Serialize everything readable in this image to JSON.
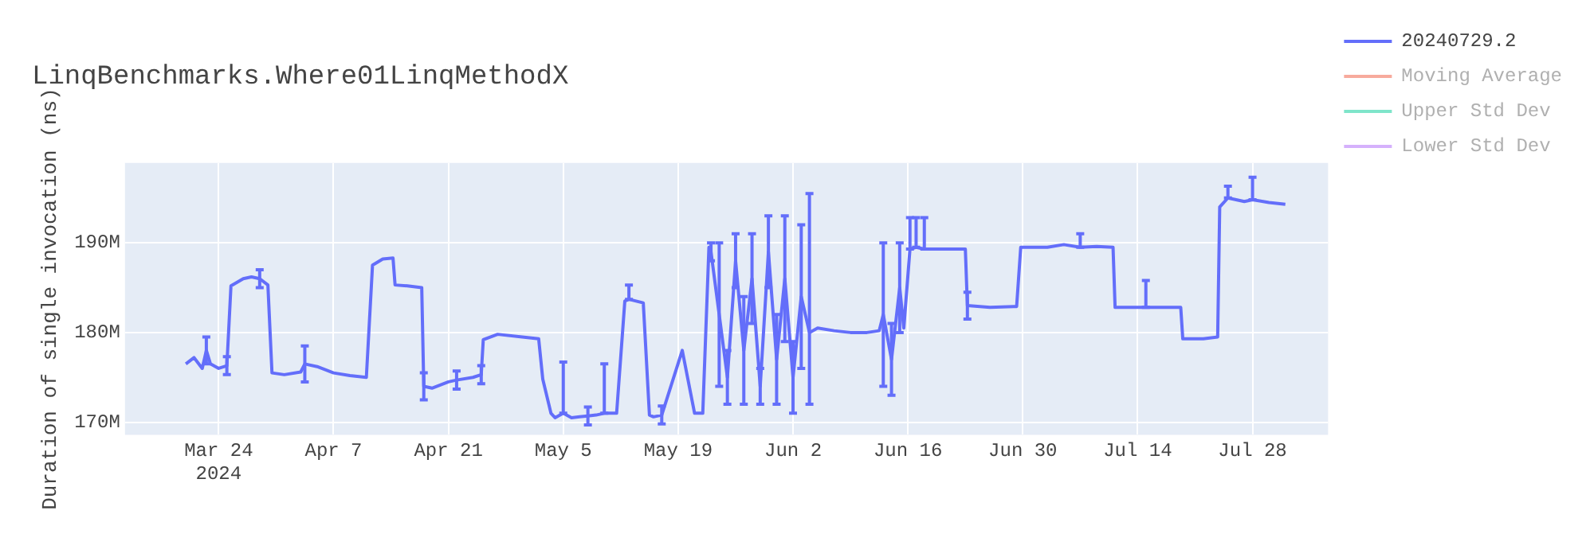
{
  "chart_data": {
    "type": "line",
    "title": "LinqBenchmarks.Where01LinqMethodX",
    "ylabel": "Duration of single invocation (ns)",
    "xlim": [
      "2024-03-12T14:00",
      "2024-08-06T05:00"
    ],
    "xticks": [
      {
        "value": "2024-03-24",
        "label": "Mar 24\n2024"
      },
      {
        "value": "2024-04-07",
        "label": "Apr 7"
      },
      {
        "value": "2024-04-21",
        "label": "Apr 21"
      },
      {
        "value": "2024-05-05",
        "label": "May 5"
      },
      {
        "value": "2024-05-19",
        "label": "May 19"
      },
      {
        "value": "2024-06-02",
        "label": "Jun 2"
      },
      {
        "value": "2024-06-16",
        "label": "Jun 16"
      },
      {
        "value": "2024-06-30",
        "label": "Jun 30"
      },
      {
        "value": "2024-07-14",
        "label": "Jul 14"
      },
      {
        "value": "2024-07-28",
        "label": "Jul 28"
      }
    ],
    "ylim": [
      168600000,
      198900000
    ],
    "yticks": [
      {
        "value": 170000000,
        "label": "170M"
      },
      {
        "value": 180000000,
        "label": "180M"
      },
      {
        "value": 190000000,
        "label": "190M"
      }
    ],
    "grid": true,
    "legend": "top right",
    "marker": "none",
    "line_style": "solid",
    "series": [
      {
        "name": "20240729.2",
        "color": "#636efa",
        "x": [
          "2024-03-20",
          "2024-03-21",
          "2024-03-22",
          "2024-03-22T12:00",
          "2024-03-23",
          "2024-03-24",
          "2024-03-25",
          "2024-03-25T12:00",
          "2024-03-27",
          "2024-03-28",
          "2024-03-29",
          "2024-03-30",
          "2024-03-30T12:00",
          "2024-04-01",
          "2024-04-03",
          "2024-04-03T12:00",
          "2024-04-05",
          "2024-04-07",
          "2024-04-09",
          "2024-04-11",
          "2024-04-11T18:00",
          "2024-04-13",
          "2024-04-14T06:00",
          "2024-04-14T12:00",
          "2024-04-16",
          "2024-04-17T18:00",
          "2024-04-18",
          "2024-04-19",
          "2024-04-21",
          "2024-04-22",
          "2024-04-24",
          "2024-04-25",
          "2024-04-25T06:00",
          "2024-04-27",
          "2024-04-30",
          "2024-05-02",
          "2024-05-02T12:00",
          "2024-05-03T12:00",
          "2024-05-04",
          "2024-05-05",
          "2024-05-06",
          "2024-05-07",
          "2024-05-08",
          "2024-05-09",
          "2024-05-10",
          "2024-05-11T12:00",
          "2024-05-12T12:00",
          "2024-05-13",
          "2024-05-14T18:00",
          "2024-05-15T12:00",
          "2024-05-16",
          "2024-05-17",
          "2024-05-19T12:00",
          "2024-05-21",
          "2024-05-22",
          "2024-05-22T18:00",
          "2024-05-23",
          "2024-05-24",
          "2024-05-25",
          "2024-05-26",
          "2024-05-27",
          "2024-05-28",
          "2024-05-29",
          "2024-05-30",
          "2024-05-31",
          "2024-06-01",
          "2024-06-02",
          "2024-06-03",
          "2024-06-04",
          "2024-06-05",
          "2024-06-07",
          "2024-06-09",
          "2024-06-11",
          "2024-06-12T12:00",
          "2024-06-13",
          "2024-06-14",
          "2024-06-15",
          "2024-06-15T12:00",
          "2024-06-16T06:00",
          "2024-06-17",
          "2024-06-18",
          "2024-06-20",
          "2024-06-23",
          "2024-06-23T06:00",
          "2024-06-26",
          "2024-06-29T06:00",
          "2024-06-29T18:00",
          "2024-07-03",
          "2024-07-05",
          "2024-07-07",
          "2024-07-09",
          "2024-07-11",
          "2024-07-11T06:00",
          "2024-07-15",
          "2024-07-19T06:00",
          "2024-07-19T12:00",
          "2024-07-22",
          "2024-07-23T18:00",
          "2024-07-24",
          "2024-07-25",
          "2024-07-27",
          "2024-07-28",
          "2024-07-30",
          "2024-08-01"
        ],
        "values": [
          176500000,
          177200000,
          176000000,
          178000000,
          176500000,
          176000000,
          176300000,
          185200000,
          186000000,
          186200000,
          186000000,
          185300000,
          175500000,
          175300000,
          175600000,
          176500000,
          176200000,
          175500000,
          175200000,
          175000000,
          187500000,
          188200000,
          188300000,
          185300000,
          185200000,
          185000000,
          174000000,
          173800000,
          174500000,
          174700000,
          175000000,
          175300000,
          179200000,
          179800000,
          179500000,
          179300000,
          174800000,
          171000000,
          170500000,
          171000000,
          170500000,
          170600000,
          170700000,
          170800000,
          171000000,
          171000000,
          183500000,
          183700000,
          183300000,
          170800000,
          170600000,
          170800000,
          178000000,
          171000000,
          171000000,
          189500000,
          189000000,
          182000000,
          175000000,
          188000000,
          178000000,
          186000000,
          174000000,
          189000000,
          177000000,
          186000000,
          175000000,
          184000000,
          180000000,
          180500000,
          180200000,
          180000000,
          180000000,
          180200000,
          182000000,
          177000000,
          185000000,
          180500000,
          189300000,
          189500000,
          189300000,
          189300000,
          189300000,
          183000000,
          182800000,
          182900000,
          189500000,
          189500000,
          189800000,
          189500000,
          189600000,
          189500000,
          182800000,
          182800000,
          182800000,
          179300000,
          179300000,
          179500000,
          194000000,
          195000000,
          194600000,
          194800000,
          194500000,
          194300000
        ],
        "errors": [
          null,
          null,
          null,
          1500000,
          null,
          null,
          1000000,
          null,
          null,
          null,
          1000000,
          null,
          null,
          null,
          null,
          2000000,
          null,
          null,
          null,
          null,
          null,
          null,
          null,
          null,
          null,
          null,
          1500000,
          null,
          null,
          1000000,
          null,
          1000000,
          null,
          null,
          null,
          null,
          null,
          null,
          null,
          [
            171000000,
            176700000
          ],
          null,
          null,
          1000000,
          null,
          [
            171000000,
            176500000
          ],
          null,
          null,
          [
            183700000,
            185300000
          ],
          null,
          null,
          null,
          1000000,
          null,
          null,
          null,
          null,
          1000000,
          8000000,
          3000000,
          3000000,
          6000000,
          5000000,
          2000000,
          4000000,
          5000000,
          7000000,
          4000000,
          8000000,
          [
            172000000,
            195500000
          ],
          null,
          null,
          null,
          null,
          null,
          8000000,
          4000000,
          5000000,
          null,
          [
            189300000,
            192800000
          ],
          [
            189500000,
            192800000
          ],
          [
            189300000,
            192800000
          ],
          null,
          null,
          1500000,
          null,
          null,
          null,
          null,
          null,
          [
            189500000,
            191000000
          ],
          null,
          null,
          null,
          [
            182800000,
            185800000
          ],
          null,
          null,
          null,
          null,
          null,
          [
            195000000,
            196300000
          ],
          null,
          [
            194800000,
            197300000
          ],
          null,
          null
        ]
      },
      {
        "name": "Moving Average",
        "color": "#f7aa9d"
      },
      {
        "name": "Upper Std Dev",
        "color": "#7fe5ca"
      },
      {
        "name": "Lower Std Dev",
        "color": "#d5b1fc"
      }
    ]
  }
}
